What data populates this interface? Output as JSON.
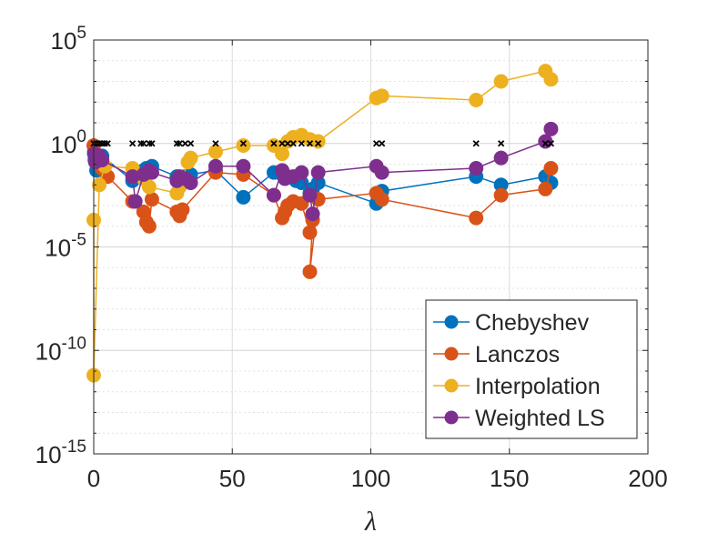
{
  "chart_data": {
    "type": "scatter",
    "title": "",
    "xlabel": "λ",
    "ylabel": "",
    "xlim": [
      0,
      200
    ],
    "ylim_exponent": [
      -15,
      5
    ],
    "xscale": "linear",
    "yscale": "log",
    "grid": true,
    "legend_position": "bottom-right",
    "x_ticks": [
      {
        "value": 0,
        "label": "0"
      },
      {
        "value": 50,
        "label": "50"
      },
      {
        "value": 100,
        "label": "100"
      },
      {
        "value": 150,
        "label": "150"
      },
      {
        "value": 200,
        "label": "200"
      }
    ],
    "y_ticks": [
      {
        "exp": 5,
        "base": "10",
        "sup": "5"
      },
      {
        "exp": 0,
        "base": "10",
        "sup": "0"
      },
      {
        "exp": -5,
        "base": "10",
        "sup": "-5"
      },
      {
        "exp": -10,
        "base": "10",
        "sup": "-10"
      },
      {
        "exp": -15,
        "base": "10",
        "sup": "-15"
      }
    ],
    "series": [
      {
        "name": "Chebyshev",
        "color": "#0072BD",
        "points": [
          [
            0.2,
            -0.4
          ],
          [
            0.4,
            -0.8
          ],
          [
            1,
            -1.3
          ],
          [
            2,
            -1.0
          ],
          [
            3,
            -0.6
          ],
          [
            14,
            -1.8
          ],
          [
            17,
            -1.5
          ],
          [
            18,
            -1.3
          ],
          [
            19,
            -1.2
          ],
          [
            20,
            -1.2
          ],
          [
            21,
            -1.1
          ],
          [
            30,
            -1.6
          ],
          [
            31,
            -1.7
          ],
          [
            33,
            -1.6
          ],
          [
            35,
            -1.5
          ],
          [
            44,
            -1.3
          ],
          [
            54,
            -2.6
          ],
          [
            65,
            -1.4
          ],
          [
            68,
            -1.5
          ],
          [
            70,
            -1.6
          ],
          [
            73,
            -1.8
          ],
          [
            75,
            -1.9
          ],
          [
            78,
            -2.4
          ],
          [
            79,
            -2.2
          ],
          [
            81,
            -1.9
          ],
          [
            102,
            -2.9
          ],
          [
            104,
            -2.3
          ],
          [
            138,
            -1.6
          ],
          [
            147,
            -2.0
          ],
          [
            163,
            -1.6
          ],
          [
            165,
            -1.9
          ]
        ]
      },
      {
        "name": "Lanczos",
        "color": "#D95319",
        "points": [
          [
            0,
            -0.1
          ],
          [
            1,
            -0.6
          ],
          [
            2,
            -0.9
          ],
          [
            3,
            -1.2
          ],
          [
            5,
            -1.6
          ],
          [
            14,
            -2.8
          ],
          [
            18,
            -3.3
          ],
          [
            19,
            -3.8
          ],
          [
            20,
            -4.0
          ],
          [
            21,
            -2.7
          ],
          [
            30,
            -3.3
          ],
          [
            31,
            -3.5
          ],
          [
            32,
            -3.2
          ],
          [
            44,
            -1.4
          ],
          [
            54,
            -1.5
          ],
          [
            65,
            -2.5
          ],
          [
            68,
            -3.6
          ],
          [
            69,
            -3.3
          ],
          [
            70,
            -3.0
          ],
          [
            72,
            -2.8
          ],
          [
            75,
            -2.9
          ],
          [
            78,
            -4.3
          ],
          [
            79,
            -3.7
          ],
          [
            78,
            -6.2
          ],
          [
            81,
            -2.7
          ],
          [
            102,
            -2.4
          ],
          [
            104,
            -2.7
          ],
          [
            138,
            -3.6
          ],
          [
            147,
            -2.5
          ],
          [
            163,
            -2.2
          ],
          [
            165,
            -1.2
          ]
        ]
      },
      {
        "name": "Interpolation",
        "color": "#EDB120",
        "points": [
          [
            0,
            -3.7
          ],
          [
            0,
            -11.2
          ],
          [
            2,
            -2.0
          ],
          [
            4,
            -1.1
          ],
          [
            14,
            -1.2
          ],
          [
            18,
            -1.7
          ],
          [
            20,
            -2.1
          ],
          [
            30,
            -2.4
          ],
          [
            31,
            -2.1
          ],
          [
            34,
            -0.9
          ],
          [
            35,
            -0.7
          ],
          [
            44,
            -0.4
          ],
          [
            54,
            -0.1
          ],
          [
            65,
            -0.1
          ],
          [
            68,
            -0.5
          ],
          [
            70,
            0.1
          ],
          [
            72,
            0.3
          ],
          [
            75,
            0.4
          ],
          [
            78,
            0.2
          ],
          [
            81,
            0.1
          ],
          [
            102,
            2.2
          ],
          [
            104,
            2.3
          ],
          [
            138,
            2.1
          ],
          [
            147,
            3.0
          ],
          [
            163,
            3.5
          ],
          [
            165,
            3.1
          ]
        ]
      },
      {
        "name": "Weighted LS",
        "color": "#7E2F8E",
        "points": [
          [
            0.2,
            -0.5
          ],
          [
            0.6,
            -0.9
          ],
          [
            1,
            -0.7
          ],
          [
            2,
            -0.6
          ],
          [
            3,
            -0.8
          ],
          [
            14,
            -1.6
          ],
          [
            15,
            -2.8
          ],
          [
            18,
            -1.5
          ],
          [
            20,
            -1.3
          ],
          [
            21,
            -1.4
          ],
          [
            30,
            -1.8
          ],
          [
            31,
            -1.6
          ],
          [
            33,
            -1.7
          ],
          [
            35,
            -1.9
          ],
          [
            44,
            -1.1
          ],
          [
            54,
            -1.1
          ],
          [
            65,
            -2.5
          ],
          [
            68,
            -1.3
          ],
          [
            69,
            -1.7
          ],
          [
            72,
            -1.6
          ],
          [
            75,
            -1.4
          ],
          [
            78,
            -2.5
          ],
          [
            79,
            -3.4
          ],
          [
            81,
            -1.4
          ],
          [
            102,
            -1.1
          ],
          [
            104,
            -1.4
          ],
          [
            138,
            -1.2
          ],
          [
            147,
            -0.7
          ],
          [
            163,
            0.1
          ],
          [
            165,
            0.7
          ]
        ]
      }
    ],
    "markers_at_one": {
      "name": "black-x-markers",
      "color": "#000000",
      "x": [
        0,
        1,
        2,
        3,
        4,
        5,
        14,
        17,
        18,
        20,
        21,
        30,
        31,
        33,
        35,
        44,
        54,
        65,
        68,
        70,
        72,
        75,
        78,
        81,
        102,
        104,
        138,
        147,
        163,
        165
      ]
    }
  }
}
